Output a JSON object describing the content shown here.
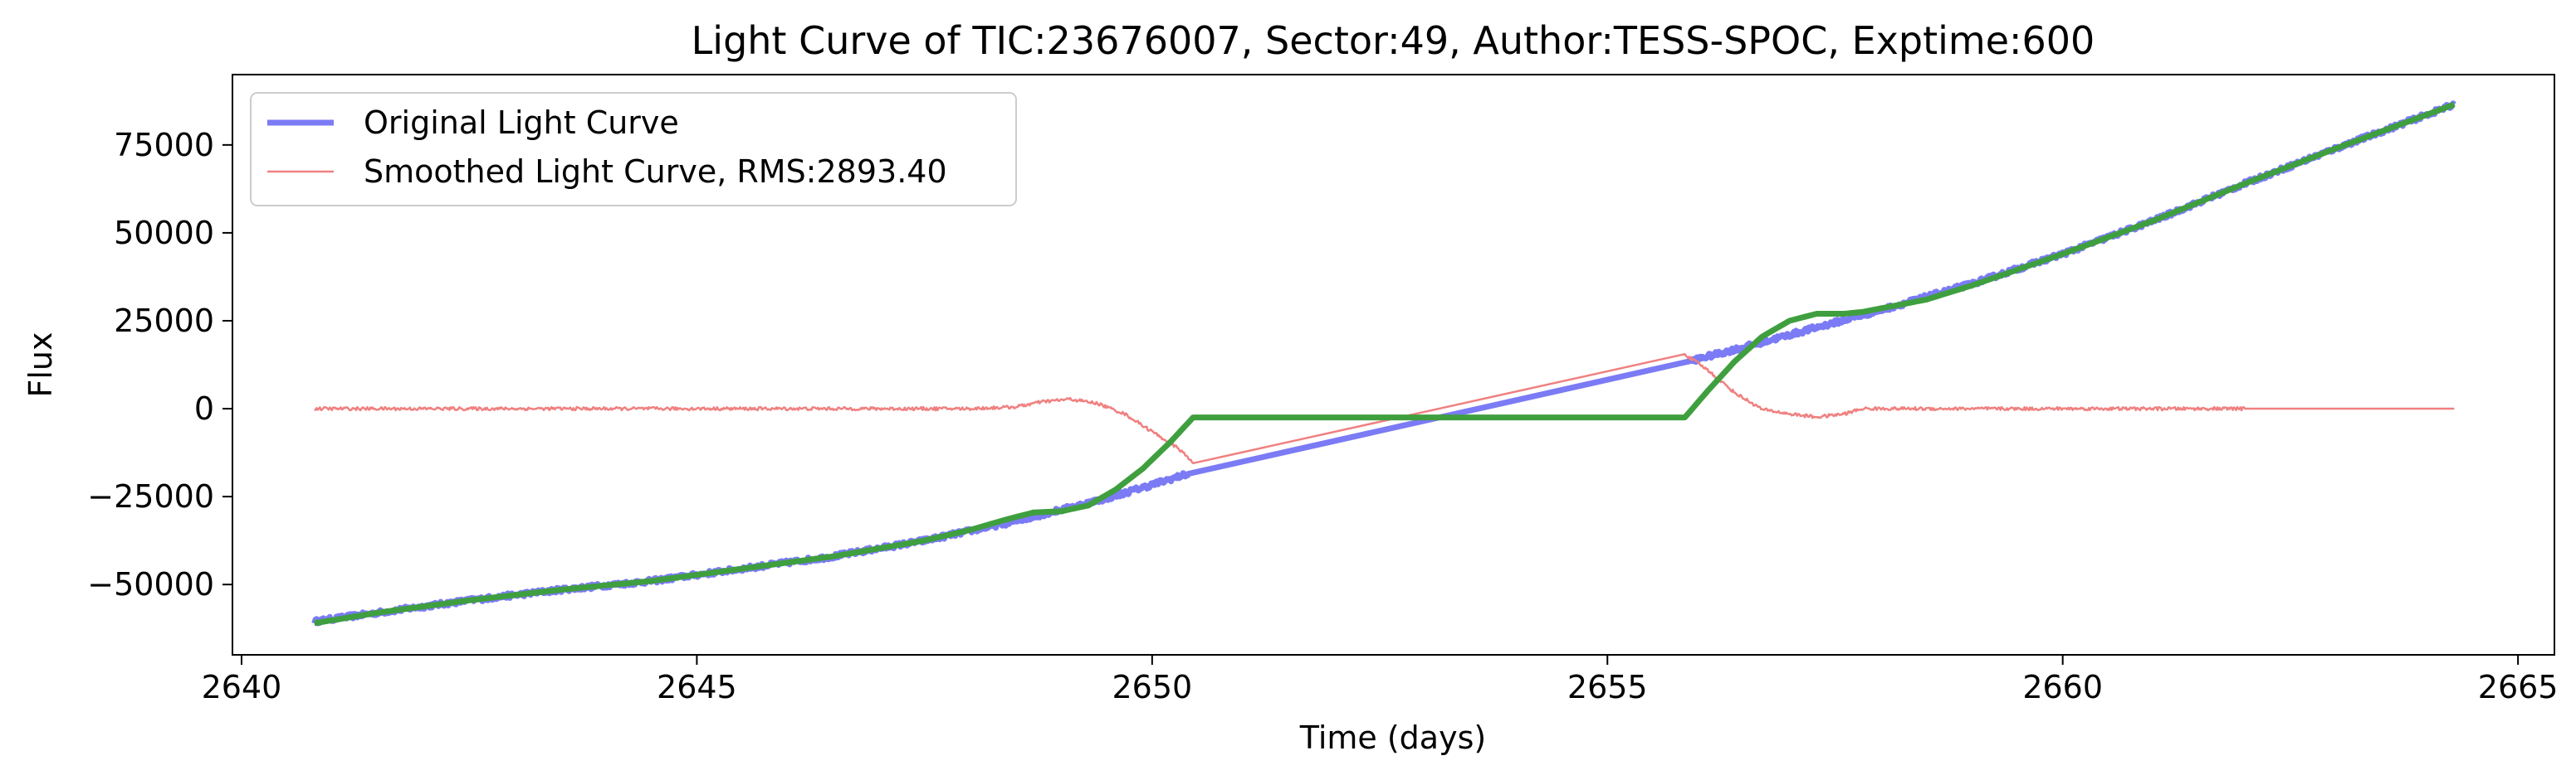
{
  "chart_data": {
    "type": "line",
    "title": "Light Curve of TIC:23676007, Sector:49, Author:TESS-SPOC, Exptime:600",
    "xlabel": "Time (days)",
    "ylabel": "Flux",
    "xlim": [
      2639.9,
      2665.4
    ],
    "ylim": [
      -70000,
      95000
    ],
    "xticks": [
      2640,
      2645,
      2650,
      2655,
      2660,
      2665
    ],
    "yticks": [
      -50000,
      -25000,
      0,
      25000,
      50000,
      75000
    ],
    "ytick_labels": [
      "−50000",
      "−25000",
      "0",
      "25000",
      "50000",
      "75000"
    ],
    "grid": false,
    "legend": {
      "placement": "upper-left",
      "entries": [
        {
          "label": "Original Light Curve",
          "color": "#7b7bf5",
          "width": "thick"
        },
        {
          "label": "Smoothed Light Curve, RMS:2893.40",
          "color": "#f08080",
          "width": "thin"
        }
      ]
    },
    "series": [
      {
        "name": "Original Light Curve",
        "color": "#7b7bf5",
        "noise": 700,
        "x": [
          2640.8,
          2641.5,
          2642.5,
          2643.5,
          2644.5,
          2645.5,
          2646.5,
          2647.5,
          2648.5,
          2649.5,
          2650.4,
          2655.9,
          2656.5,
          2657.0,
          2657.5,
          2658.0,
          2659.0,
          2660.0,
          2661.0,
          2662.0,
          2663.0,
          2664.3
        ],
        "y": [
          -60500,
          -58000,
          -54500,
          -51500,
          -49000,
          -45500,
          -42000,
          -37500,
          -32000,
          -25500,
          -18500,
          13500,
          17500,
          21000,
          24500,
          28000,
          35500,
          44000,
          53500,
          64000,
          74000,
          86500
        ]
      },
      {
        "name": "Smoothed Light Curve, RMS:2893.40",
        "color": "#f08080",
        "noise": 450,
        "x": [
          2640.8,
          2641.5,
          2642.5,
          2643.5,
          2644.5,
          2645.5,
          2646.5,
          2647.5,
          2648.0,
          2648.5,
          2648.8,
          2649.1,
          2649.4,
          2649.7,
          2650.0,
          2650.3,
          2650.45,
          2655.85,
          2656.1,
          2656.4,
          2656.7,
          2657.0,
          2657.3,
          2657.6,
          2657.8,
          2658.5,
          2660.0,
          2662.0,
          2664.3
        ],
        "y": [
          0,
          0,
          0,
          0,
          0,
          0,
          0,
          0,
          0,
          500,
          2000,
          2700,
          1500,
          -1500,
          -6500,
          -11500,
          -15500,
          15500,
          11000,
          4500,
          -200,
          -1500,
          -2400,
          -1500,
          0,
          0,
          0,
          0,
          0
        ]
      },
      {
        "color": "#3f9f3f",
        "noise": 0,
        "x": [
          2640.8,
          2641.5,
          2642.5,
          2643.5,
          2644.5,
          2645.5,
          2646.5,
          2647.5,
          2648.0,
          2648.4,
          2648.7,
          2649.0,
          2649.3,
          2649.6,
          2649.9,
          2650.2,
          2650.45,
          2655.85,
          2656.1,
          2656.4,
          2656.7,
          2657.0,
          2657.3,
          2657.6,
          2657.8,
          2658.5,
          2659.0,
          2660.0,
          2661.0,
          2662.0,
          2663.0,
          2664.3
        ],
        "y": [
          -61000,
          -58000,
          -54500,
          -51500,
          -49000,
          -45500,
          -42000,
          -37500,
          -34500,
          -31500,
          -29500,
          -29200,
          -27500,
          -23000,
          -17000,
          -9500,
          -2500,
          -2500,
          5000,
          13500,
          20500,
          25000,
          27000,
          27000,
          27500,
          31000,
          35000,
          44000,
          53500,
          64000,
          74000,
          86500
        ]
      }
    ]
  }
}
